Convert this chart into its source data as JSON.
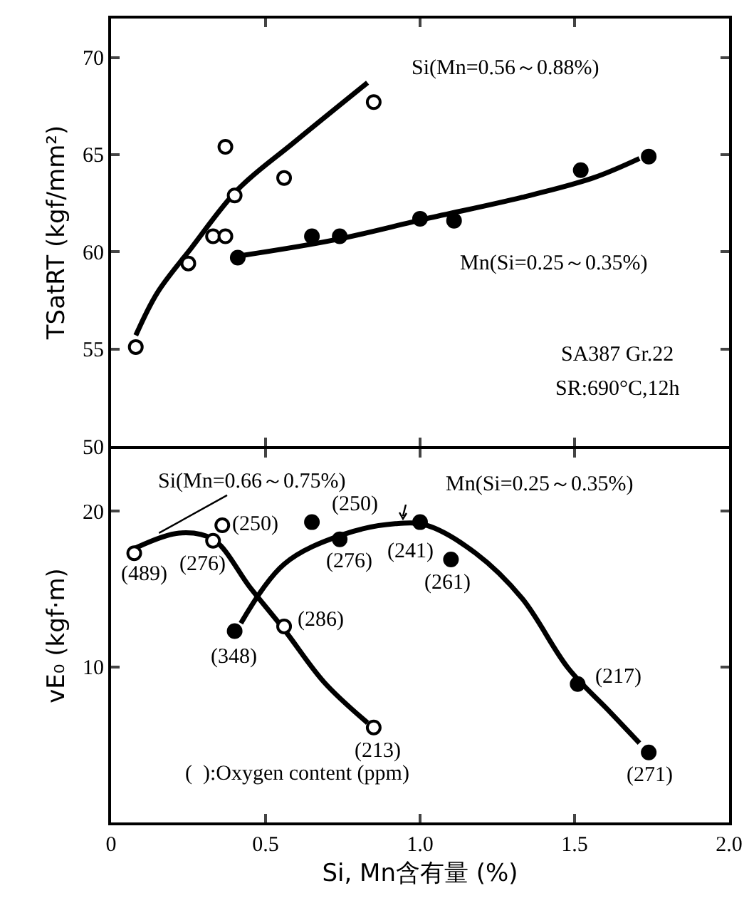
{
  "chart_data": [
    {
      "type": "scatter",
      "ylabel": "TSatRT (kgf/mm²)",
      "xlim": [
        0,
        2
      ],
      "xticks": [
        0.5,
        1,
        1.5
      ],
      "ylim": [
        50,
        72
      ],
      "yticks": [
        50,
        55,
        60,
        65,
        70
      ],
      "tick_labels": "y",
      "marker": "circle",
      "series": [
        {
          "type": "scatter",
          "color": "#ffffff",
          "x": [
            0.08,
            0.25,
            0.33,
            0.37,
            0.37,
            0.4,
            0.56,
            0.85
          ],
          "values": [
            55.1,
            59.4,
            60.8,
            60.8,
            65.4,
            62.9,
            63.8,
            67.7
          ]
        },
        {
          "type": "scatter",
          "color": "#000000",
          "x": [
            0.41,
            0.65,
            0.74,
            1.0,
            1.11,
            1.52,
            1.74
          ],
          "values": [
            59.7,
            60.8,
            60.8,
            61.7,
            61.6,
            64.2,
            64.9
          ]
        },
        {
          "type": "line",
          "marker": "none",
          "color": "#000000",
          "x": [
            0.08,
            0.15,
            0.26,
            0.41,
            0.59,
            0.83
          ],
          "values": [
            55.7,
            57.9,
            60.2,
            63.2,
            65.6,
            68.7
          ]
        },
        {
          "type": "line",
          "marker": "none",
          "color": "#000000",
          "x": [
            0.42,
            0.72,
            1.02,
            1.33,
            1.56,
            1.71
          ],
          "values": [
            59.8,
            60.6,
            61.7,
            62.8,
            63.8,
            64.8
          ]
        }
      ],
      "annotations": [
        {
          "text": "Si(Mn=0.56～0.88%)",
          "x": 0.83,
          "y": 68.7
        },
        {
          "text": "Mn(Si=0.25～0.35%)",
          "x": 1.33,
          "y": 62.8
        },
        "SA387 Gr.22",
        "SR:690°C,12h"
      ]
    },
    {
      "type": "scatter",
      "xlabel": "Si, Mn含有量 (%)",
      "ylabel": "vE₀ (kgf·m)",
      "xlim": [
        0,
        2
      ],
      "xticks": [
        0,
        {
          "value": 0.5,
          "label": "0.5"
        },
        {
          "value": 1,
          "label": "1.0"
        },
        {
          "value": 1.5,
          "label": "1.5"
        },
        {
          "value": 2,
          "label": "2.0"
        }
      ],
      "ylim": [
        0,
        24
      ],
      "yticks": [
        10,
        20
      ],
      "marker": "circle",
      "series": [
        {
          "type": "scatter",
          "color": "#ffffff",
          "x": [
            0.075,
            0.33,
            0.36,
            0.56,
            0.85
          ],
          "values": [
            17.3,
            18.1,
            19.1,
            12.6,
            6.1
          ]
        },
        {
          "type": "scatter",
          "color": "#000000",
          "x": [
            0.4,
            0.65,
            0.74,
            1.0,
            1.1,
            1.51,
            1.74
          ],
          "values": [
            12.3,
            19.3,
            18.2,
            19.3,
            16.9,
            8.9,
            4.5
          ]
        },
        {
          "type": "line",
          "marker": "none",
          "color": "#000000",
          "x": [
            0.075,
            0.22,
            0.33,
            0.45,
            0.56,
            0.69,
            0.83
          ],
          "values": [
            17.6,
            18.6,
            18.2,
            15.1,
            12.4,
            9.0,
            6.4
          ]
        },
        {
          "type": "line",
          "marker": "none",
          "color": "#000000",
          "x": [
            0.42,
            0.56,
            0.75,
            0.92,
            1.02,
            1.18,
            1.33,
            1.48,
            1.61,
            1.71
          ],
          "values": [
            12.8,
            16.6,
            18.5,
            19.2,
            19.1,
            17.3,
            14.4,
            9.9,
            7.2,
            5.1
          ]
        }
      ],
      "annotations": [
        {
          "text": "Si(Mn=0.66～0.75%)",
          "x": 0.155,
          "y": 18.6
        },
        {
          "text": "Mn(Si=0.25～0.35%)",
          "x": 1.0,
          "y": 19.1
        },
        {
          "text": "(489)",
          "x": 0.075,
          "y": 17.3
        },
        {
          "text": "(276)",
          "x": 0.33,
          "y": 18.1
        },
        {
          "text": "(250)",
          "x": 0.36,
          "y": 19.1
        },
        {
          "text": "(286)",
          "x": 0.56,
          "y": 12.6
        },
        {
          "text": "(213)",
          "x": 0.85,
          "y": 6.1
        },
        {
          "text": "(348)",
          "x": 0.4,
          "y": 12.3
        },
        {
          "text": "(250)",
          "x": 0.65,
          "y": 19.3
        },
        {
          "text": "(276)",
          "x": 0.74,
          "y": 18.2
        },
        {
          "text": "(241)",
          "x": 1.0,
          "y": 19.3
        },
        {
          "text": "(261)",
          "x": 1.1,
          "y": 16.9
        },
        {
          "text": "(217)",
          "x": 1.51,
          "y": 8.9
        },
        {
          "text": "(271)",
          "x": 1.74,
          "y": 4.5
        },
        "(  ):Oxygen content (ppm)"
      ]
    }
  ]
}
